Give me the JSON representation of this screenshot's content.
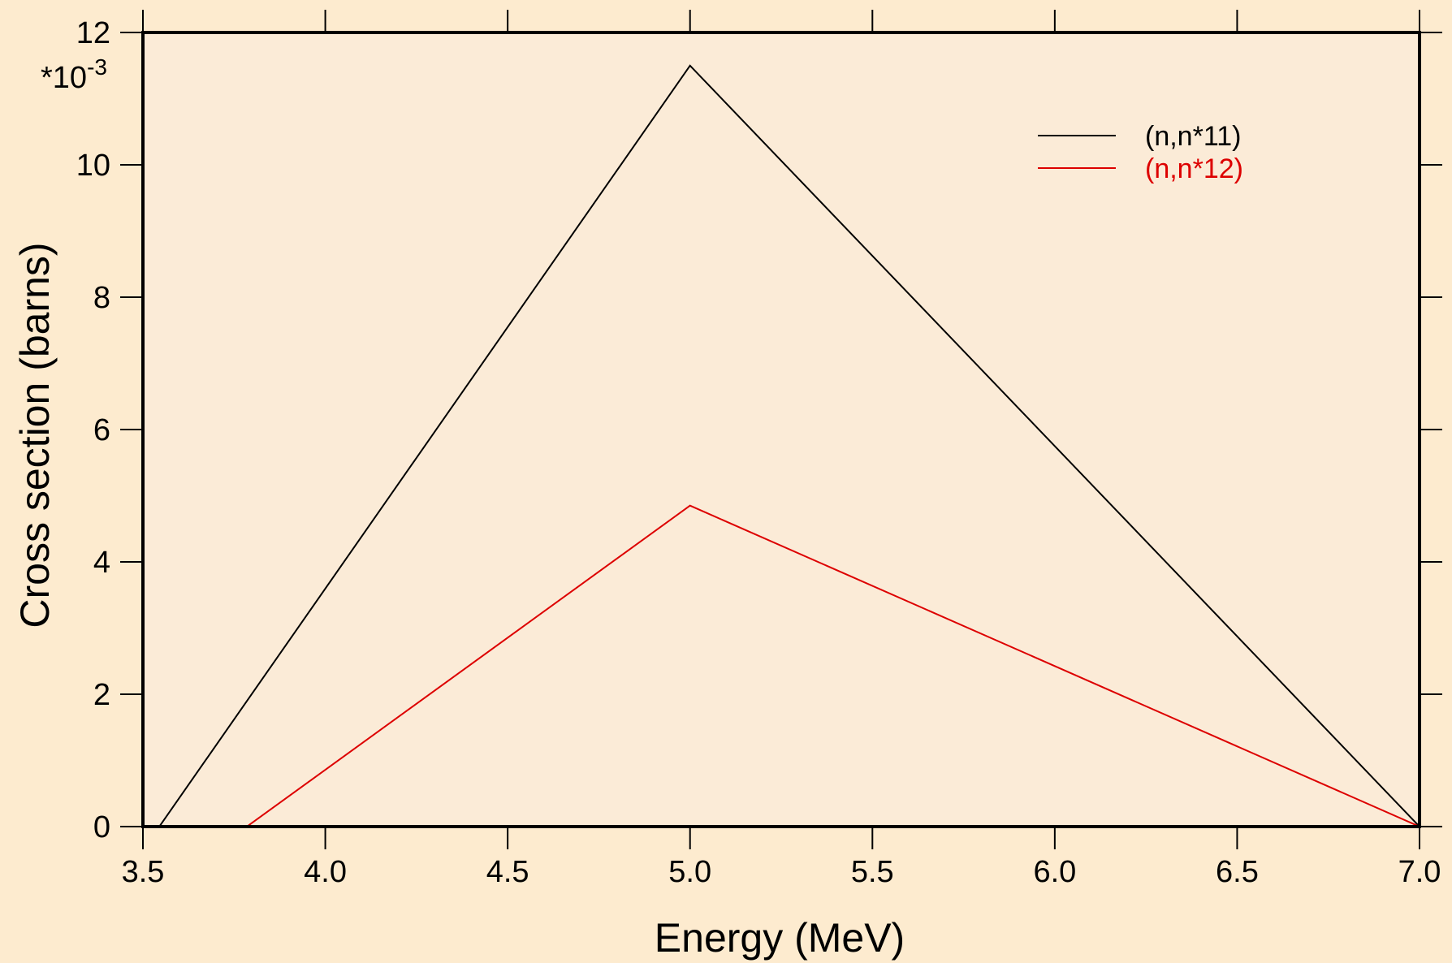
{
  "chart_data": {
    "type": "line",
    "title": "",
    "xlabel": "Energy (MeV)",
    "ylabel": "Cross section (barns)",
    "y_multiplier": {
      "base": "*10",
      "exponent": "-3"
    },
    "xlim": [
      3.5,
      7.0
    ],
    "ylim": [
      0,
      12
    ],
    "x_ticks": [
      3.5,
      4.0,
      4.5,
      5.0,
      5.5,
      6.0,
      6.5,
      7.0
    ],
    "x_tick_labels": [
      "3.5",
      "4.0",
      "4.5",
      "5.0",
      "5.5",
      "6.0",
      "6.5",
      "7.0"
    ],
    "y_ticks": [
      0,
      2,
      4,
      6,
      8,
      10,
      12
    ],
    "y_tick_labels": [
      "0",
      "2",
      "4",
      "6",
      "8",
      "10",
      "12"
    ],
    "grid": false,
    "legend_position": "top-right",
    "background_color": "#fdebcf",
    "plot_background_color": "#fbebd7",
    "series": [
      {
        "name": "(n,n*11)",
        "color": "#000000",
        "x": [
          3.545,
          5.0,
          7.0
        ],
        "y": [
          0,
          11.5,
          0
        ]
      },
      {
        "name": "(n,n*12)",
        "color": "#dd0000",
        "x": [
          3.785,
          5.0,
          7.0
        ],
        "y": [
          0,
          4.85,
          0
        ]
      }
    ]
  }
}
